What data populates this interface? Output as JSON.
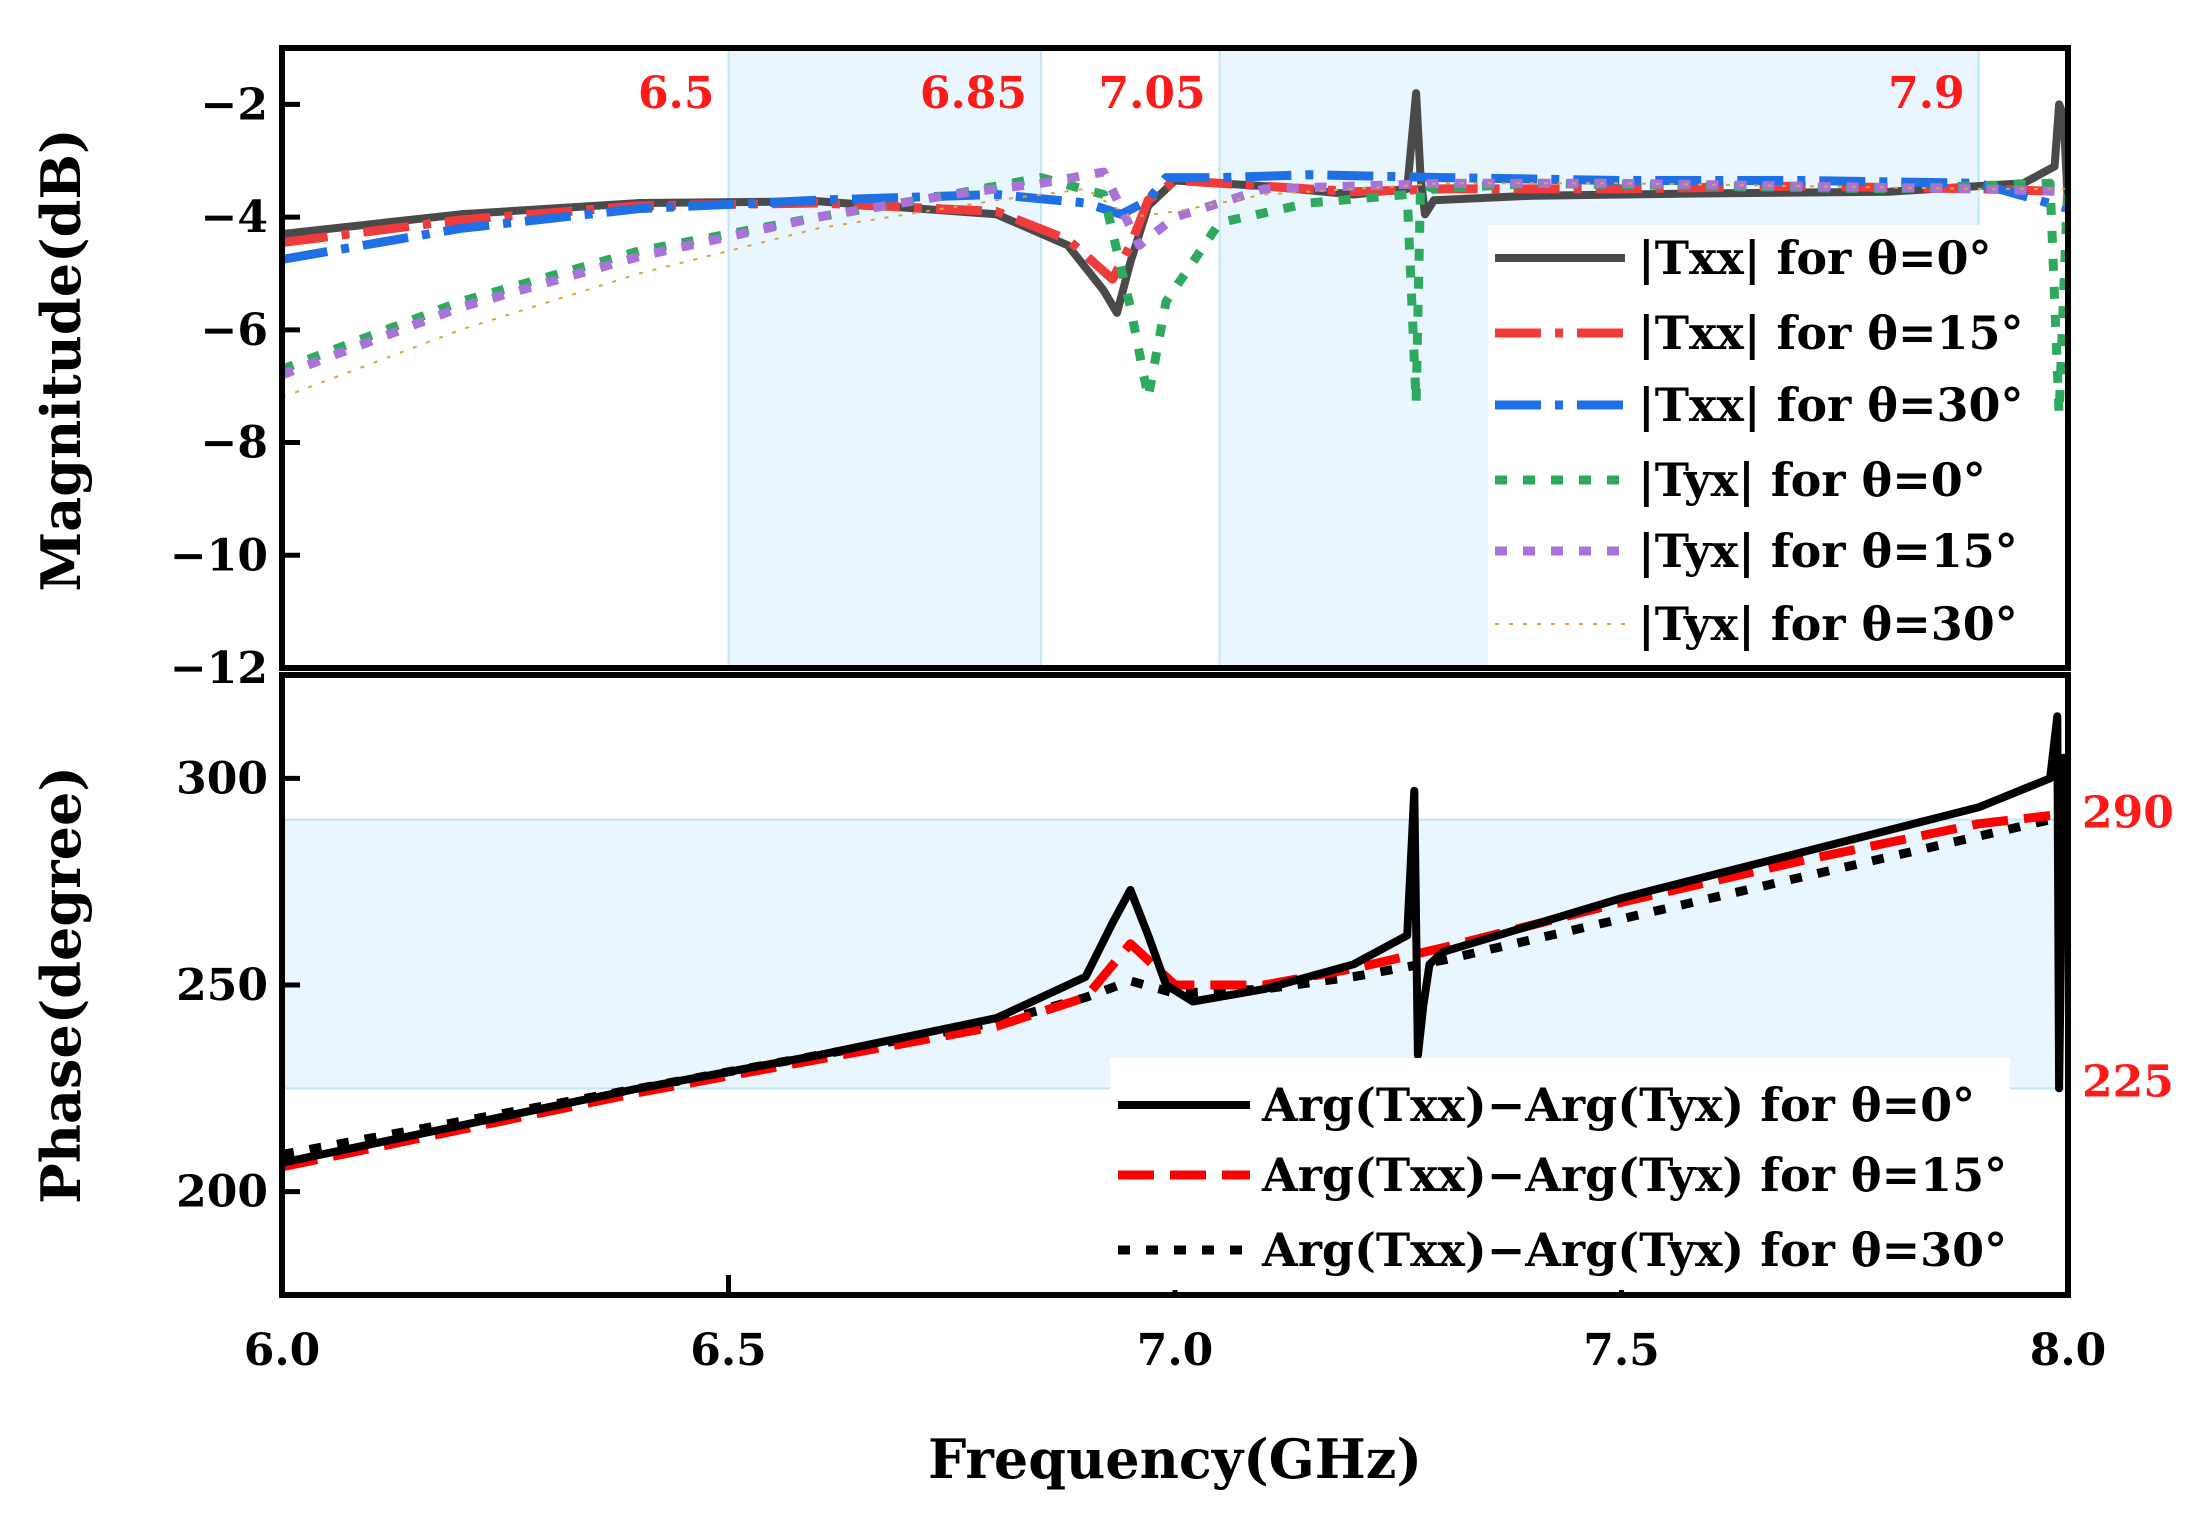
{
  "chart_data": [
    {
      "type": "line",
      "panel": "top",
      "title": "",
      "xlabel": "",
      "ylabel": "Magnitude(dB)",
      "xlim": [
        6.0,
        8.0
      ],
      "ylim": [
        -12,
        -1
      ],
      "yticks": [
        -2,
        -4,
        -6,
        -8,
        -10,
        -12
      ],
      "ytick_labels": [
        "−2",
        "−4",
        "−6",
        "−8",
        "−10",
        "−12"
      ],
      "shaded_x_bands": [
        [
          6.5,
          6.85
        ],
        [
          7.05,
          7.9
        ]
      ],
      "band_color": "#e9f6fd",
      "band_line_color": "#bfe6f8",
      "annotations": [
        {
          "x": 6.5,
          "text": "6.5"
        },
        {
          "x": 6.85,
          "text": "6.85"
        },
        {
          "x": 7.05,
          "text": "7.05"
        },
        {
          "x": 7.9,
          "text": "7.9"
        }
      ],
      "annotation_color": "#ff1a1a",
      "legend_position": "right",
      "series": [
        {
          "name": "|Txx| for θ=0°",
          "color": "#4a4a4a",
          "style": "solid",
          "x": [
            6.0,
            6.2,
            6.4,
            6.6,
            6.8,
            6.88,
            6.92,
            6.935,
            6.95,
            6.97,
            7.0,
            7.1,
            7.2,
            7.26,
            7.27,
            7.275,
            7.28,
            7.29,
            7.4,
            7.6,
            7.8,
            7.95,
            7.985,
            7.99,
            7.995,
            8.0
          ],
          "y": [
            -4.3,
            -3.95,
            -3.75,
            -3.72,
            -3.95,
            -4.5,
            -5.3,
            -5.7,
            -4.8,
            -3.8,
            -3.35,
            -3.45,
            -3.6,
            -3.5,
            -1.8,
            -3.3,
            -3.95,
            -3.7,
            -3.62,
            -3.58,
            -3.55,
            -3.4,
            -3.1,
            -2.0,
            -2.2,
            -3.8
          ]
        },
        {
          "name": "|Txx| for θ=15°",
          "color": "#ef3b3b",
          "style": "dashdot",
          "x": [
            6.0,
            6.2,
            6.4,
            6.6,
            6.8,
            6.88,
            6.93,
            6.95,
            6.97,
            7.0,
            7.1,
            7.2,
            7.3,
            7.5,
            7.7,
            7.9,
            8.0
          ],
          "y": [
            -4.45,
            -4.05,
            -3.8,
            -3.75,
            -3.9,
            -4.4,
            -5.1,
            -4.5,
            -3.7,
            -3.35,
            -3.45,
            -3.55,
            -3.5,
            -3.5,
            -3.45,
            -3.5,
            -3.55
          ]
        },
        {
          "name": "|Txx| for θ=30°",
          "color": "#1f6fe5",
          "style": "dashdot",
          "x": [
            6.0,
            6.2,
            6.4,
            6.6,
            6.8,
            6.9,
            6.94,
            6.97,
            6.99,
            7.05,
            7.15,
            7.3,
            7.5,
            7.7,
            7.9,
            8.0
          ],
          "y": [
            -4.75,
            -4.2,
            -3.85,
            -3.7,
            -3.6,
            -3.75,
            -3.95,
            -3.7,
            -3.3,
            -3.3,
            -3.25,
            -3.3,
            -3.35,
            -3.35,
            -3.4,
            -3.85
          ]
        },
        {
          "name": "|Tyx| for θ=0°",
          "color": "#2eaa5f",
          "style": "dotted",
          "x": [
            6.0,
            6.2,
            6.4,
            6.6,
            6.75,
            6.85,
            6.92,
            6.95,
            6.97,
            6.99,
            7.05,
            7.15,
            7.26,
            7.27,
            7.275,
            7.29,
            7.4,
            7.6,
            7.8,
            7.98,
            7.99,
            8.0
          ],
          "y": [
            -6.7,
            -5.5,
            -4.6,
            -4.0,
            -3.6,
            -3.3,
            -3.6,
            -5.6,
            -7.2,
            -5.5,
            -4.1,
            -3.75,
            -3.6,
            -7.3,
            -3.4,
            -3.5,
            -3.4,
            -3.45,
            -3.5,
            -3.4,
            -7.5,
            -3.3
          ]
        },
        {
          "name": "|Tyx| for θ=15°",
          "color": "#a872d8",
          "style": "dotted",
          "x": [
            6.0,
            6.2,
            6.4,
            6.6,
            6.75,
            6.85,
            6.92,
            6.96,
            7.0,
            7.1,
            7.2,
            7.3,
            7.5,
            7.7,
            7.9,
            8.0
          ],
          "y": [
            -6.8,
            -5.6,
            -4.7,
            -4.0,
            -3.6,
            -3.4,
            -3.2,
            -4.5,
            -4.0,
            -3.5,
            -3.45,
            -3.4,
            -3.4,
            -3.45,
            -3.5,
            -3.55
          ]
        },
        {
          "name": "|Tyx| for θ=30°",
          "color": "#d9a441",
          "style": "sparse",
          "x": [
            6.0,
            6.2,
            6.4,
            6.6,
            6.8,
            6.9,
            6.95,
            7.0,
            7.1,
            7.2,
            7.3,
            7.5,
            7.7,
            7.9,
            8.0
          ],
          "y": [
            -7.2,
            -6.0,
            -5.0,
            -4.2,
            -3.7,
            -3.5,
            -4.0,
            -3.9,
            -3.6,
            -3.5,
            -3.4,
            -3.4,
            -3.45,
            -3.5,
            -3.5
          ]
        }
      ]
    },
    {
      "type": "line",
      "panel": "bottom",
      "title": "",
      "xlabel": "Frequency(GHz)",
      "ylabel": "Phase(degree)",
      "xlim": [
        6.0,
        8.0
      ],
      "ylim": [
        175,
        325
      ],
      "xticks": [
        6.0,
        6.5,
        7.0,
        7.5,
        8.0
      ],
      "xtick_labels": [
        "6.0",
        "6.5",
        "7.0",
        "7.5",
        "8.0"
      ],
      "yticks": [
        200,
        250,
        300
      ],
      "ytick_labels": [
        "200",
        "250",
        "300"
      ],
      "shaded_y_band": [
        225,
        290
      ],
      "band_color": "#e9f6fd",
      "band_line_color": "#bfe6f8",
      "annotations": [
        {
          "y": 290,
          "text": "290"
        },
        {
          "y": 225,
          "text": "225"
        }
      ],
      "annotation_color": "#ff1a1a",
      "legend_position": "bottom-right",
      "series": [
        {
          "name": "Arg(Txx)−Arg(Tyx) for θ=0°",
          "color": "#000000",
          "style": "solid",
          "x": [
            6.0,
            6.2,
            6.4,
            6.6,
            6.8,
            6.9,
            6.93,
            6.95,
            6.97,
            6.99,
            7.02,
            7.1,
            7.2,
            7.26,
            7.268,
            7.272,
            7.278,
            7.285,
            7.3,
            7.5,
            7.7,
            7.9,
            7.98,
            7.988,
            7.99,
            7.995,
            8.0
          ],
          "y": [
            207,
            216,
            225,
            233,
            242,
            252,
            265,
            273,
            262,
            250,
            246,
            249,
            255,
            262,
            297,
            233,
            245,
            255,
            258,
            271,
            282,
            293,
            300,
            315,
            225,
            305,
            296
          ]
        },
        {
          "name": "Arg(Txx)−Arg(Tyx) for θ=15°",
          "color": "#ff0000",
          "style": "dashed",
          "x": [
            6.0,
            6.2,
            6.4,
            6.6,
            6.8,
            6.9,
            6.95,
            7.0,
            7.1,
            7.2,
            7.3,
            7.5,
            7.7,
            7.9,
            7.98
          ],
          "y": [
            206,
            215,
            224,
            232,
            240,
            247,
            260,
            250,
            250,
            254,
            259,
            270,
            280,
            289,
            291
          ]
        },
        {
          "name": "Arg(Txx)−Arg(Tyx) for θ=30°",
          "color": "#000000",
          "style": "dotted",
          "x": [
            6.0,
            6.2,
            6.4,
            6.6,
            6.8,
            6.9,
            6.95,
            7.0,
            7.1,
            7.2,
            7.3,
            7.5,
            7.7,
            7.9,
            7.98
          ],
          "y": [
            209,
            217,
            225,
            233,
            241,
            247,
            251,
            248,
            249,
            252,
            256,
            266,
            276,
            286,
            290
          ]
        }
      ]
    }
  ]
}
